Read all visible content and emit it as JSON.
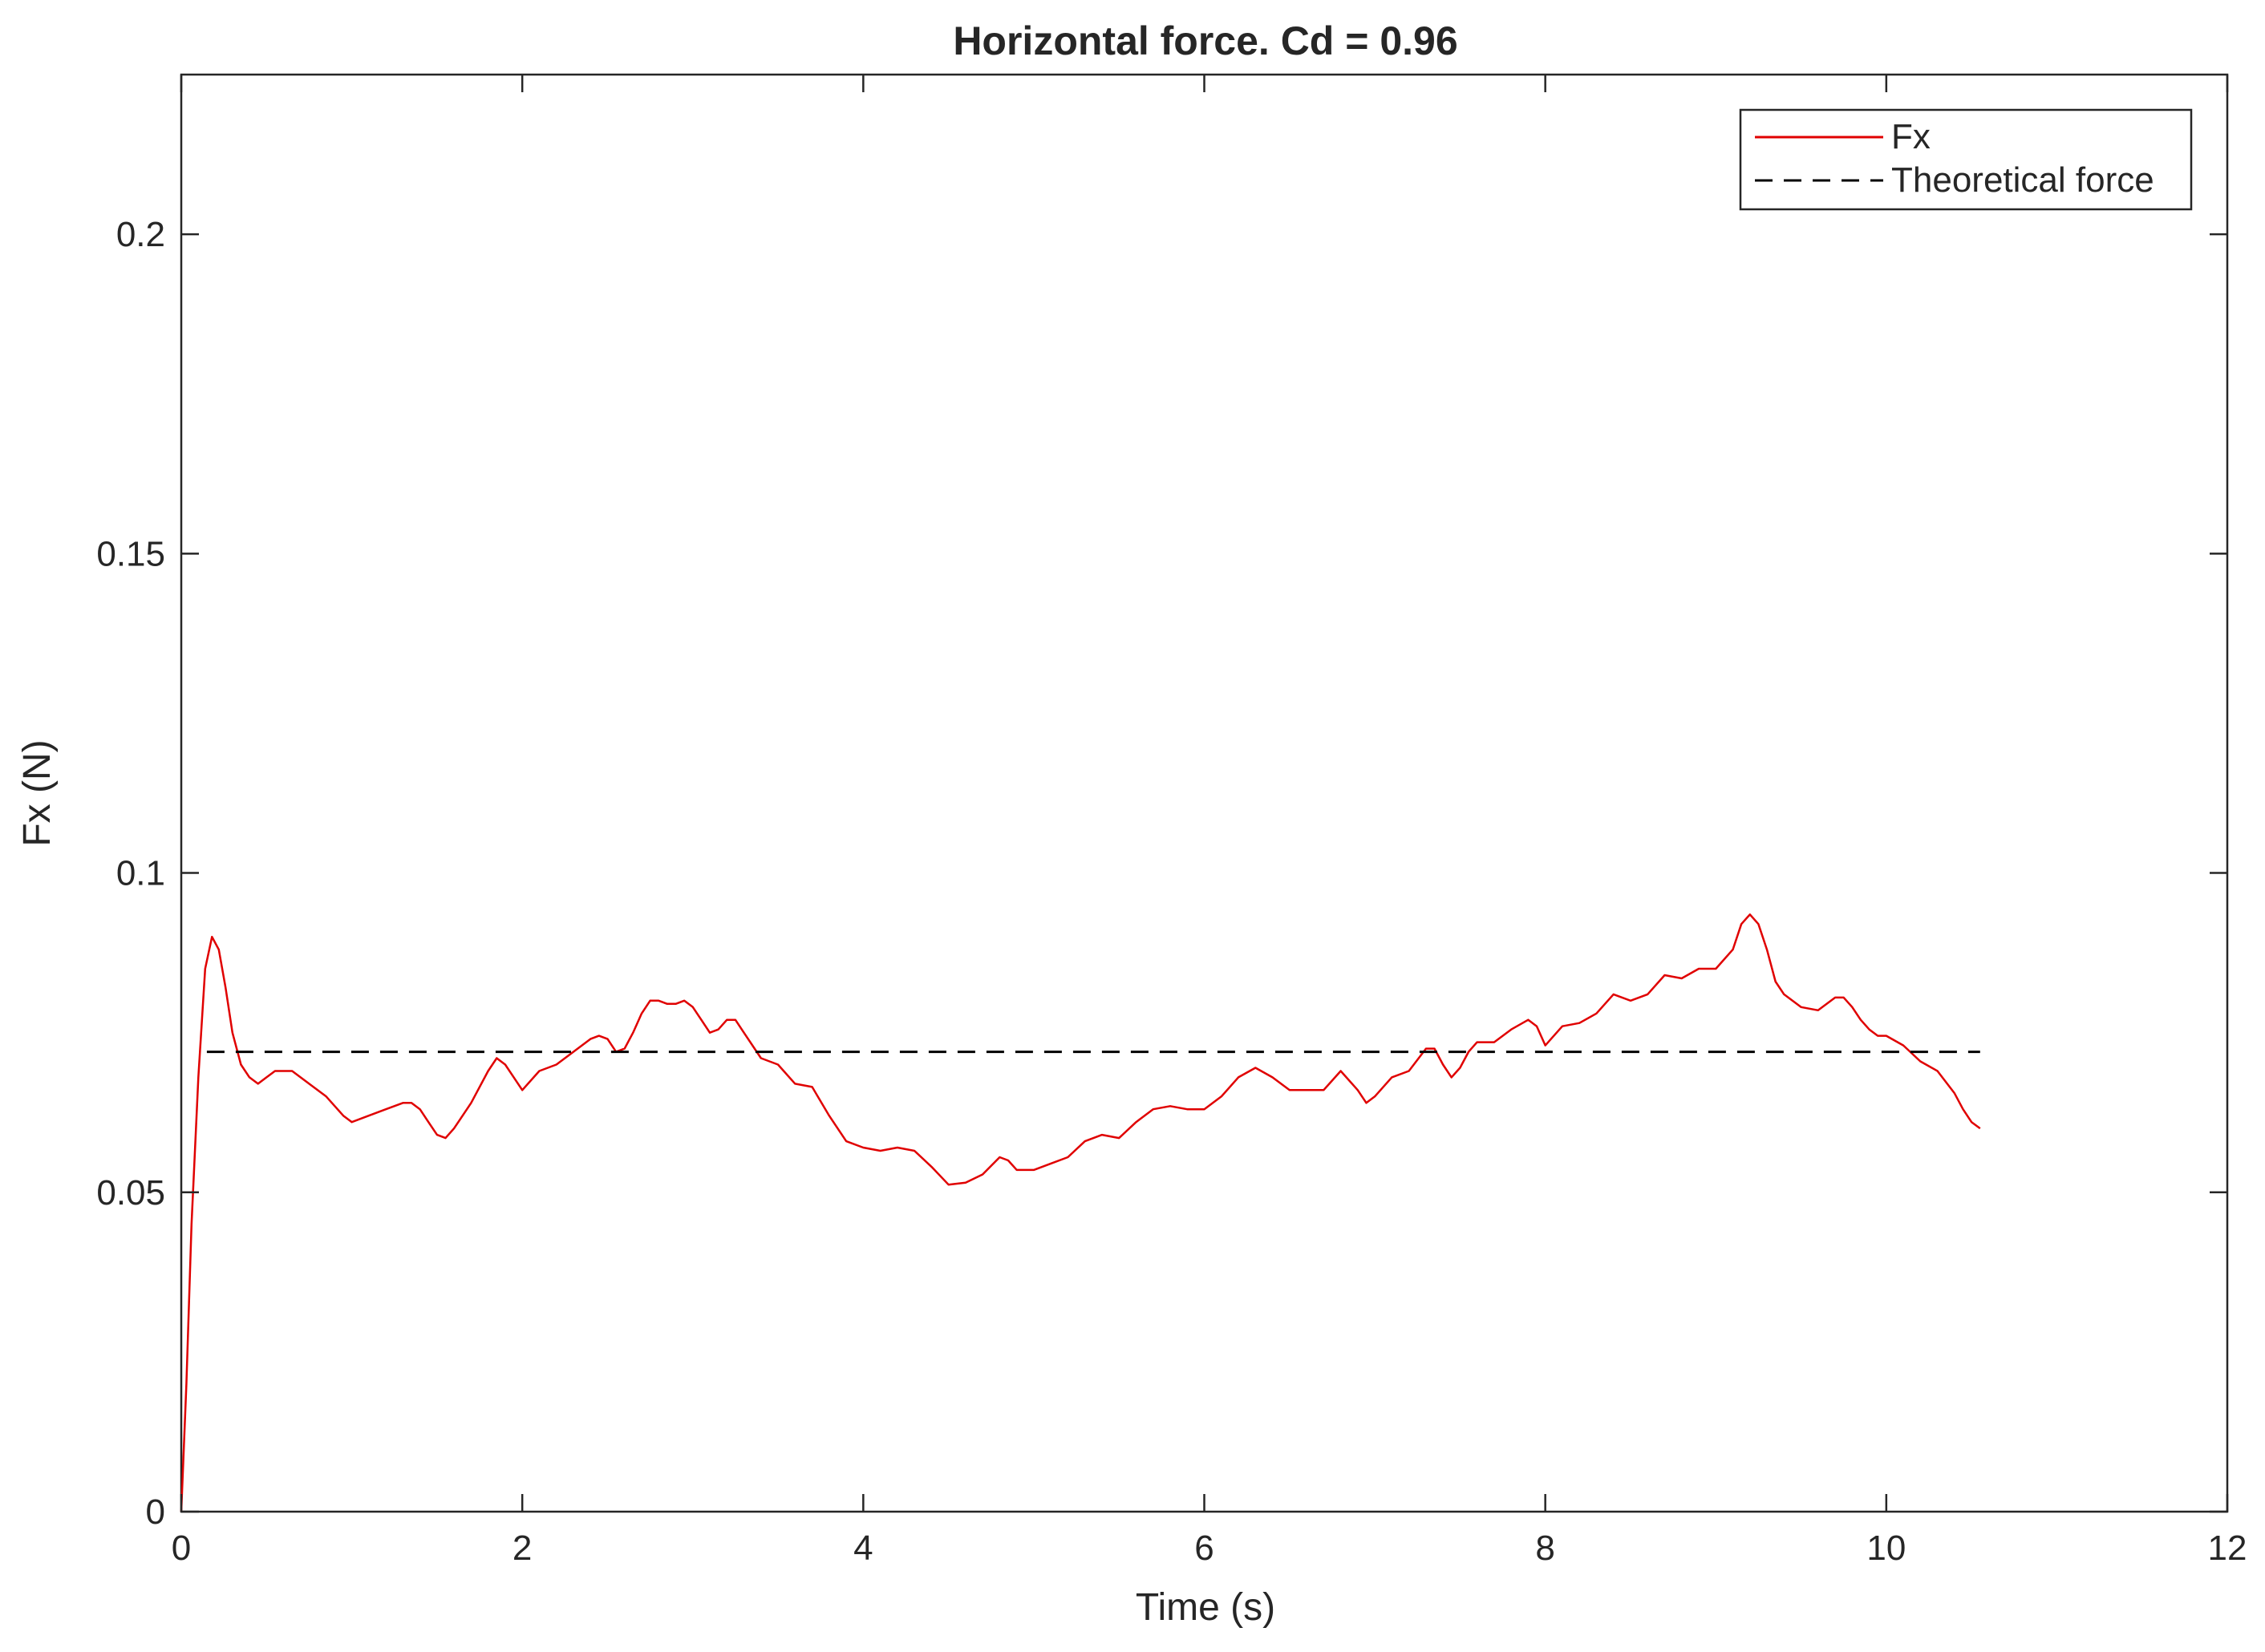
{
  "chart_data": {
    "type": "line",
    "title": "Horizontal force. Cd = 0.96",
    "xlabel": "Time (s)",
    "ylabel": "Fx (N)",
    "xlim": [
      0,
      12
    ],
    "ylim": [
      0,
      0.225
    ],
    "xticks": [
      0,
      2,
      4,
      6,
      8,
      10,
      12
    ],
    "xtick_labels": [
      "0",
      "2",
      "4",
      "6",
      "8",
      "10",
      "12"
    ],
    "yticks": [
      0,
      0.05,
      0.1,
      0.15,
      0.2
    ],
    "ytick_labels": [
      "0",
      "0.05",
      "0.1",
      "0.15",
      "0.2"
    ],
    "grid": false,
    "legend_position": "top-right",
    "series": [
      {
        "name": "Fx",
        "color": "#e00000",
        "style": "solid",
        "x": [
          0,
          0.03,
          0.06,
          0.1,
          0.14,
          0.18,
          0.22,
          0.26,
          0.3,
          0.35,
          0.4,
          0.45,
          0.5,
          0.55,
          0.65,
          0.75,
          0.85,
          0.95,
          1.0,
          1.1,
          1.2,
          1.3,
          1.35,
          1.4,
          1.45,
          1.5,
          1.55,
          1.6,
          1.7,
          1.8,
          1.85,
          1.9,
          2.0,
          2.1,
          2.2,
          2.3,
          2.4,
          2.45,
          2.5,
          2.55,
          2.6,
          2.65,
          2.7,
          2.75,
          2.8,
          2.85,
          2.9,
          2.95,
          3.0,
          3.05,
          3.1,
          3.15,
          3.2,
          3.25,
          3.3,
          3.4,
          3.5,
          3.6,
          3.7,
          3.8,
          3.9,
          4.0,
          4.1,
          4.2,
          4.3,
          4.4,
          4.5,
          4.6,
          4.7,
          4.8,
          4.85,
          4.9,
          5.0,
          5.1,
          5.2,
          5.3,
          5.4,
          5.5,
          5.6,
          5.7,
          5.8,
          5.9,
          6.0,
          6.1,
          6.2,
          6.3,
          6.4,
          6.5,
          6.6,
          6.7,
          6.8,
          6.9,
          6.95,
          7.0,
          7.1,
          7.2,
          7.3,
          7.35,
          7.4,
          7.45,
          7.5,
          7.55,
          7.6,
          7.7,
          7.8,
          7.9,
          7.95,
          8.0,
          8.1,
          8.2,
          8.3,
          8.4,
          8.5,
          8.6,
          8.7,
          8.8,
          8.9,
          9.0,
          9.1,
          9.15,
          9.2,
          9.25,
          9.3,
          9.35,
          9.4,
          9.5,
          9.6,
          9.7,
          9.75,
          9.8,
          9.85,
          9.9,
          9.95,
          10.0,
          10.1,
          10.2,
          10.3,
          10.4,
          10.45,
          10.5,
          10.55
        ],
        "y": [
          0,
          0.02,
          0.045,
          0.068,
          0.085,
          0.09,
          0.088,
          0.082,
          0.075,
          0.07,
          0.068,
          0.067,
          0.068,
          0.069,
          0.069,
          0.067,
          0.065,
          0.062,
          0.061,
          0.062,
          0.063,
          0.064,
          0.064,
          0.063,
          0.061,
          0.059,
          0.0585,
          0.06,
          0.064,
          0.069,
          0.071,
          0.07,
          0.066,
          0.069,
          0.07,
          0.072,
          0.074,
          0.0745,
          0.074,
          0.072,
          0.0725,
          0.075,
          0.078,
          0.08,
          0.08,
          0.0795,
          0.0795,
          0.08,
          0.079,
          0.077,
          0.075,
          0.0755,
          0.077,
          0.077,
          0.075,
          0.071,
          0.07,
          0.067,
          0.0665,
          0.062,
          0.058,
          0.057,
          0.0565,
          0.057,
          0.0565,
          0.054,
          0.0512,
          0.0515,
          0.0528,
          0.0555,
          0.055,
          0.0535,
          0.0535,
          0.0545,
          0.0555,
          0.058,
          0.059,
          0.0585,
          0.061,
          0.063,
          0.0635,
          0.063,
          0.063,
          0.065,
          0.068,
          0.0695,
          0.068,
          0.066,
          0.066,
          0.066,
          0.069,
          0.066,
          0.064,
          0.065,
          0.068,
          0.069,
          0.0725,
          0.0725,
          0.07,
          0.068,
          0.0695,
          0.072,
          0.0735,
          0.0735,
          0.0755,
          0.077,
          0.076,
          0.073,
          0.076,
          0.0765,
          0.078,
          0.081,
          0.08,
          0.081,
          0.084,
          0.0835,
          0.085,
          0.085,
          0.088,
          0.092,
          0.0935,
          0.092,
          0.088,
          0.083,
          0.081,
          0.079,
          0.0785,
          0.0805,
          0.0805,
          0.079,
          0.077,
          0.0755,
          0.0745,
          0.0745,
          0.073,
          0.0705,
          0.069,
          0.0655,
          0.063,
          0.061,
          0.06
        ]
      },
      {
        "name": "Theoretical force",
        "color": "#000000",
        "style": "dashed",
        "x": [
          0.15,
          10.55
        ],
        "y": [
          0.072,
          0.072
        ]
      }
    ]
  }
}
